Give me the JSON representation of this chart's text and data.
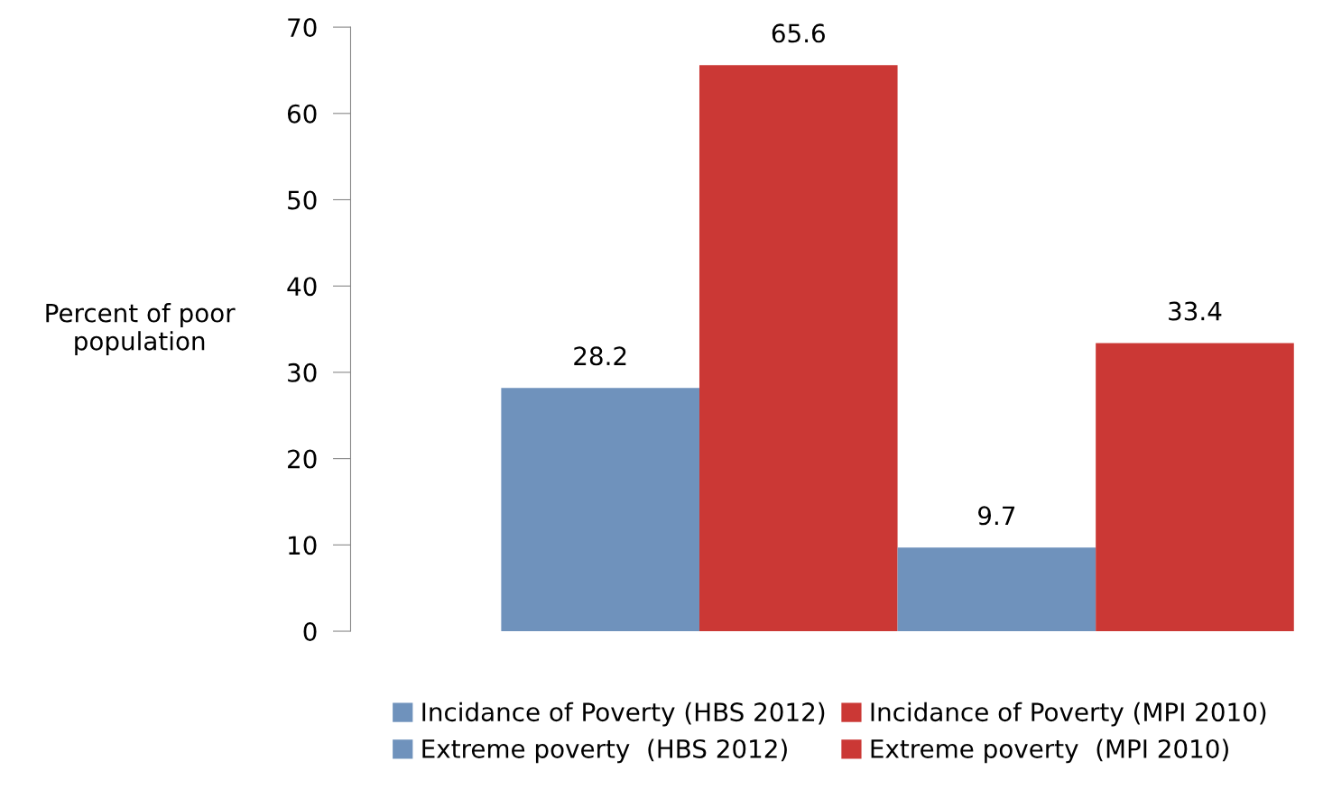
{
  "chart_data": {
    "type": "bar",
    "ylabel": "Percent of poor\npopulation",
    "categories": [
      null
    ],
    "series": [
      {
        "name": "Incidance of Poverty (HBS 2012)",
        "color": "#6f92bc",
        "values": [
          28.2
        ]
      },
      {
        "name": "Incidance of Poverty (MPI 2010)",
        "color": "#cb3835",
        "values": [
          65.6
        ]
      },
      {
        "name": "Extreme poverty  (HBS 2012)",
        "color": "#6f92bc",
        "values": [
          9.7
        ]
      },
      {
        "name": "Extreme poverty  (MPI 2010)",
        "color": "#cb3835",
        "values": [
          33.4
        ]
      }
    ],
    "ylim": [
      0,
      70
    ],
    "yticks": [
      0,
      10,
      20,
      30,
      40,
      50,
      60,
      70
    ],
    "data_labels": true,
    "grid": false,
    "legend": "bottom"
  }
}
